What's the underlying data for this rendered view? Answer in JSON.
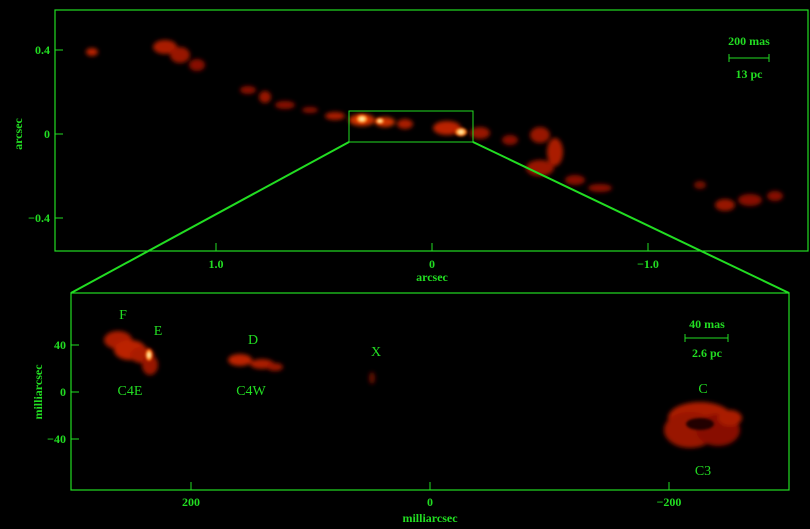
{
  "colors": {
    "accent": "#22dd22",
    "background": "#000000",
    "emission_core": "#ffffcc",
    "emission_mid": "#ff8800",
    "emission_faint": "#881100"
  },
  "top_panel": {
    "y_label": "arcsec",
    "x_label": "arcsec",
    "x_ticks": [
      "1.0",
      "0",
      "−1.0"
    ],
    "y_ticks": [
      "0.4",
      "0",
      "−0.4"
    ],
    "scale_bar": {
      "top": "200 mas",
      "bottom": "13 pc"
    }
  },
  "bottom_panel": {
    "y_label": "milliarcsec",
    "x_label": "milliarcsec",
    "x_ticks": [
      "200",
      "0",
      "−200"
    ],
    "y_ticks": [
      "40",
      "0",
      "−40"
    ],
    "scale_bar": {
      "top": "40 mas",
      "bottom": "2.6 pc"
    },
    "component_labels": {
      "f": "F",
      "e": "E",
      "d": "D",
      "x": "X",
      "c": "C",
      "c4e": "C4E",
      "c4w": "C4W",
      "c3": "C3"
    }
  }
}
